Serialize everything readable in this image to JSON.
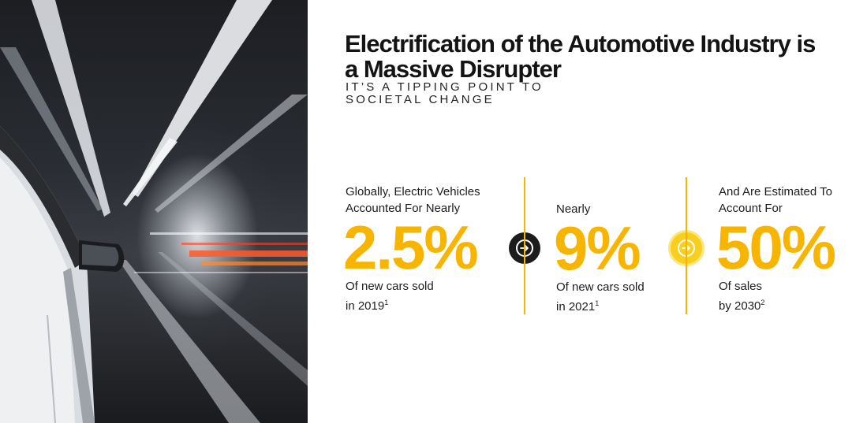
{
  "slide": {
    "title": "Electrification of the Automotive Industry is a Massive Disrupter",
    "subtitle": "IT’S A TIPPING POINT TO SOCIETAL CHANGE"
  },
  "stats": [
    {
      "intro": "Globally, Electric Vehicles Accounted For Nearly",
      "value": "2.5%",
      "note_line1": "Of new cars sold",
      "note_line2": "in 2019",
      "footnote": "1"
    },
    {
      "intro": "Nearly",
      "value": "9%",
      "note_line1": "Of new cars sold",
      "note_line2": "in 2021",
      "footnote": "1"
    },
    {
      "intro": "And Are Estimated To Account For",
      "value": "50%",
      "note_line1": "Of sales",
      "note_line2": "by 2030",
      "footnote": "2"
    }
  ],
  "colors": {
    "accent": "#f7b500",
    "arrow_dark": "#1c1c1c",
    "arrow_yellow": "#f8ce1f"
  },
  "icons": {
    "arrow_1": "arrow-right-circle-icon",
    "arrow_2": "arrow-right-circle-icon"
  }
}
